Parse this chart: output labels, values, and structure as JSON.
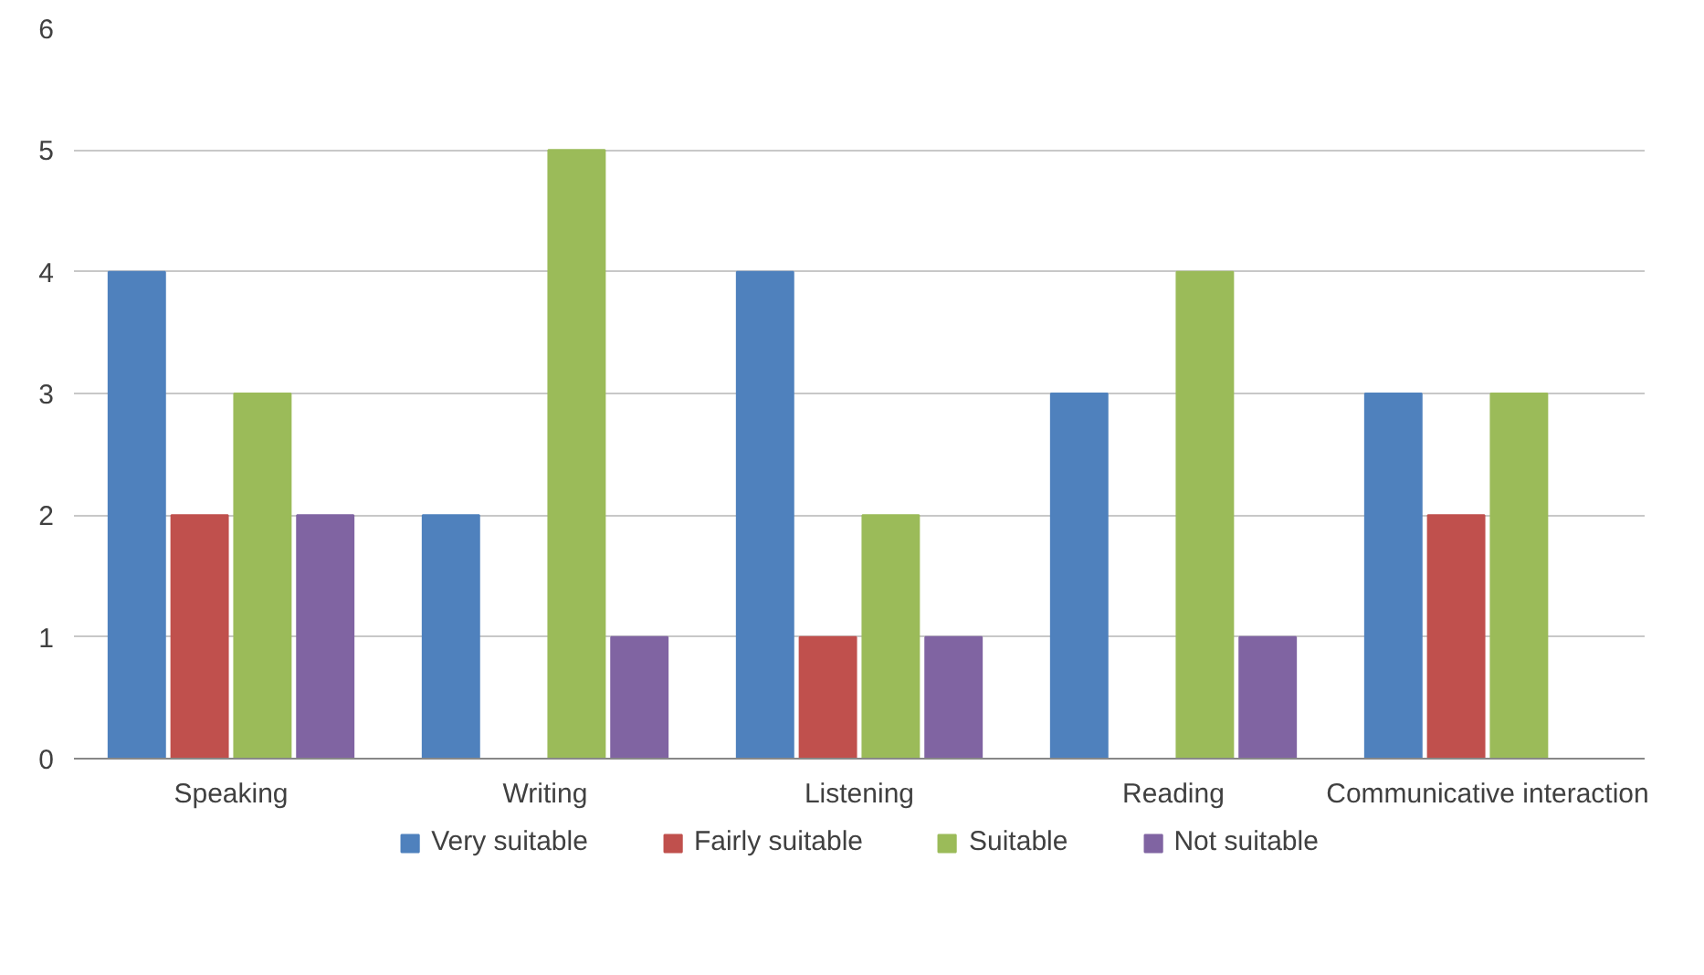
{
  "chart_data": {
    "type": "bar",
    "categories": [
      "Speaking",
      "Writing",
      "Listening",
      "Reading",
      "Communicative interaction"
    ],
    "series": [
      {
        "name": "Very suitable",
        "color": "#4f81bd",
        "values": [
          4,
          2,
          4,
          3,
          3
        ]
      },
      {
        "name": "Fairly suitable",
        "color": "#c0504d",
        "values": [
          2,
          0,
          1,
          0,
          2
        ]
      },
      {
        "name": "Suitable",
        "color": "#9bbb59",
        "values": [
          3,
          5,
          2,
          4,
          3
        ]
      },
      {
        "name": "Not suitable",
        "color": "#8064a2",
        "values": [
          2,
          1,
          1,
          1,
          0
        ]
      }
    ],
    "ylim": [
      0,
      6
    ],
    "yticks": [
      0,
      1,
      2,
      3,
      4,
      5,
      6
    ],
    "grid": "y",
    "legend": "bottom"
  }
}
